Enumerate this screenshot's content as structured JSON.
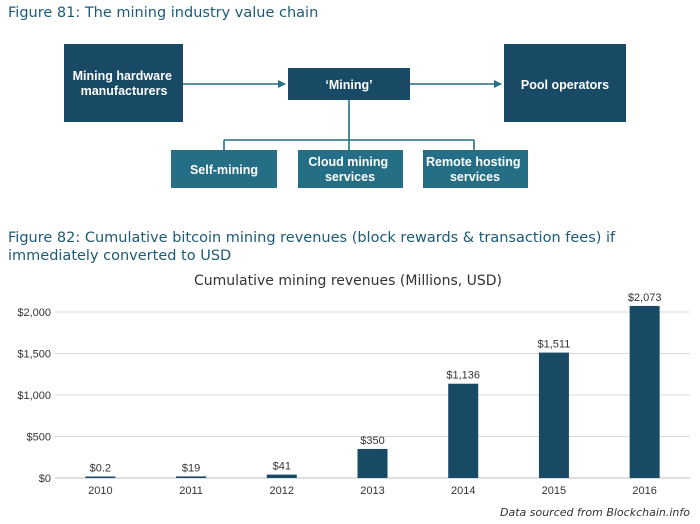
{
  "figure81": {
    "title": "Figure 81: The mining industry value chain",
    "nodes": {
      "hardware": [
        "Mining hardware",
        "manufacturers"
      ],
      "mining": [
        "‘Mining’"
      ],
      "pool": [
        "Pool operators"
      ],
      "self": [
        "Self-mining"
      ],
      "cloud": [
        "Cloud mining",
        "services"
      ],
      "remote": [
        "Remote hosting",
        "services"
      ]
    },
    "colors": {
      "dark": "#184a66",
      "mid": "#246f85"
    }
  },
  "figure82": {
    "title": "Figure 82: Cumulative bitcoin mining revenues (block rewards & transaction fees) if immediately converted to USD",
    "source": "Data sourced from Blockchain.info"
  },
  "chart_data": {
    "type": "bar",
    "title": "Cumulative mining revenues (Millions, USD)",
    "categories": [
      "2010",
      "2011",
      "2012",
      "2013",
      "2014",
      "2015",
      "2016"
    ],
    "values": [
      0.2,
      19,
      41,
      350,
      1136,
      1511,
      2073
    ],
    "data_labels": [
      "$0.2",
      "$19",
      "$41",
      "$350",
      "$1,136",
      "$1,511",
      "$2,073"
    ],
    "ylim": [
      0,
      2000
    ],
    "yticks": [
      0,
      500,
      1000,
      1500,
      2000
    ],
    "ytick_labels": [
      "$0",
      "$500",
      "$1,000",
      "$1,500",
      "$2,000"
    ],
    "grid": true,
    "bar_color": "#184a66"
  }
}
